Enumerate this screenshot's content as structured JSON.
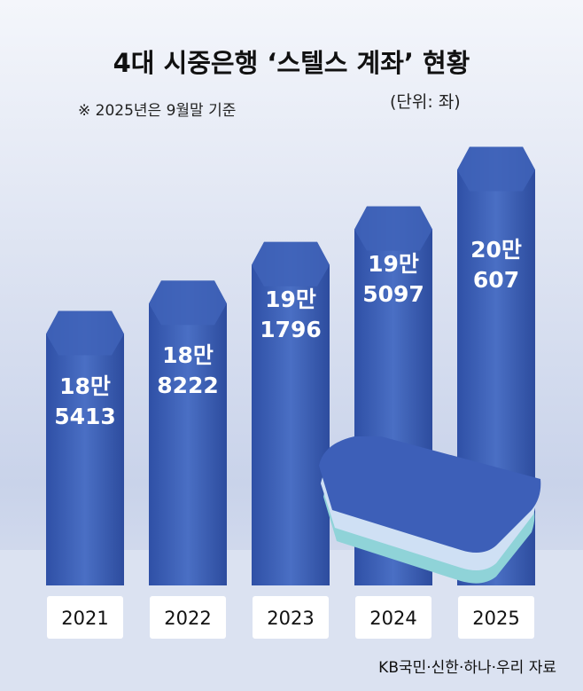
{
  "chart_data": {
    "type": "bar",
    "title": "4대 시중은행 ‘스텔스 계좌’ 현황",
    "subtitle": "※ 2025년은 9월말 기준",
    "unit": "(단위: 좌)",
    "source": "KB국민·신한·하나·우리 자료",
    "categories": [
      "2021",
      "2022",
      "2023",
      "2024",
      "2025"
    ],
    "values": [
      185413,
      188222,
      191796,
      195097,
      200607
    ],
    "value_labels": [
      "18만\n5413",
      "18만\n8222",
      "19만\n1796",
      "19만\n5097",
      "20만\n607"
    ],
    "color": "#3f63b8",
    "ylim": [
      160000,
      205000
    ]
  }
}
